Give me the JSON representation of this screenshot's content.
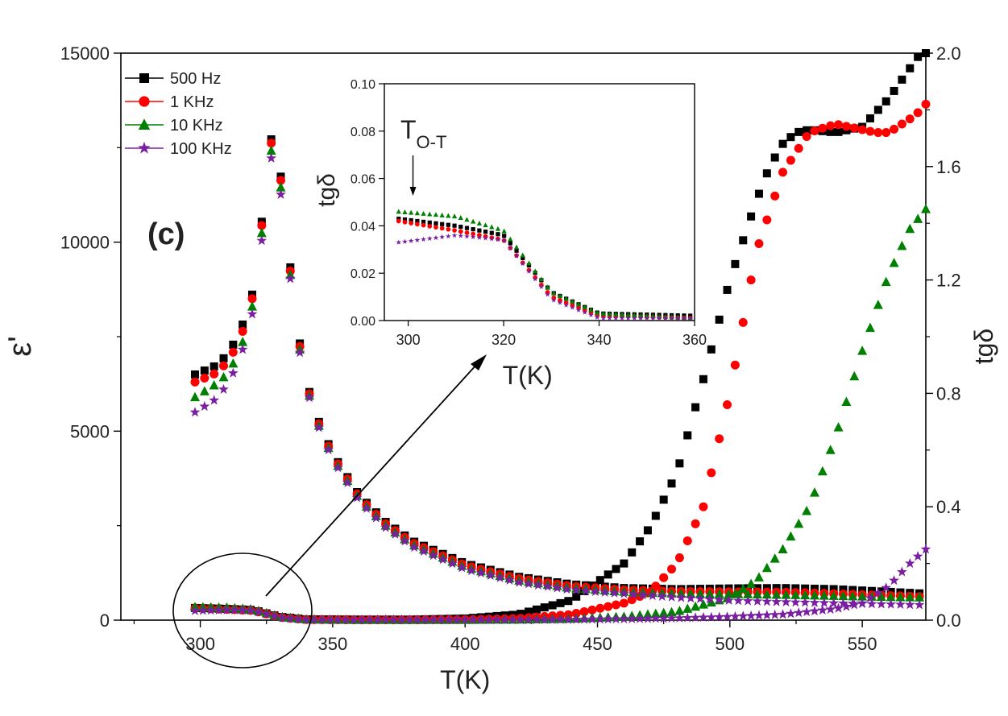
{
  "chart_data": {
    "type": "scatter",
    "panel_label": "(c)",
    "x_axis": {
      "label": "T(K)",
      "range": [
        270,
        574
      ],
      "ticks": [
        300,
        350,
        400,
        450,
        500,
        550
      ]
    },
    "y_axis_left": {
      "label": "ε'",
      "range": [
        0,
        15000
      ],
      "ticks": [
        0,
        5000,
        10000,
        15000
      ]
    },
    "y_axis_right": {
      "label": "tgδ",
      "range": [
        0,
        2.0
      ],
      "ticks": [
        "0.0",
        "0.4",
        "0.8",
        "1.2",
        "1.6",
        "2.0"
      ]
    },
    "legend": {
      "placement": "top-left"
    },
    "series": [
      {
        "name": "500 Hz",
        "color": "#000000",
        "marker": "square",
        "eps_points": [
          [
            298,
            6500
          ],
          [
            305,
            6700
          ],
          [
            310,
            7000
          ],
          [
            315,
            7600
          ],
          [
            320,
            8700
          ],
          [
            324,
            11000
          ],
          [
            326,
            12400
          ],
          [
            328,
            13200
          ],
          [
            330,
            12000
          ],
          [
            333,
            10000
          ],
          [
            336,
            8000
          ],
          [
            340,
            6300
          ],
          [
            345,
            5200
          ],
          [
            350,
            4400
          ],
          [
            360,
            3300
          ],
          [
            370,
            2600
          ],
          [
            380,
            2100
          ],
          [
            400,
            1500
          ],
          [
            420,
            1150
          ],
          [
            440,
            950
          ],
          [
            460,
            850
          ],
          [
            480,
            820
          ],
          [
            500,
            840
          ],
          [
            520,
            850
          ],
          [
            540,
            820
          ],
          [
            560,
            750
          ],
          [
            574,
            700
          ]
        ],
        "tan_points": [
          [
            298,
            0.043
          ],
          [
            310,
            0.04
          ],
          [
            320,
            0.036
          ],
          [
            330,
            0.012
          ],
          [
            340,
            0.003
          ],
          [
            360,
            0.002
          ],
          [
            380,
            0.002
          ],
          [
            400,
            0.006
          ],
          [
            420,
            0.02
          ],
          [
            440,
            0.07
          ],
          [
            460,
            0.2
          ],
          [
            470,
            0.33
          ],
          [
            480,
            0.52
          ],
          [
            490,
            0.85
          ],
          [
            500,
            1.2
          ],
          [
            510,
            1.48
          ],
          [
            515,
            1.6
          ],
          [
            520,
            1.68
          ],
          [
            525,
            1.72
          ],
          [
            530,
            1.73
          ],
          [
            540,
            1.72
          ],
          [
            550,
            1.74
          ],
          [
            560,
            1.84
          ],
          [
            566,
            1.92
          ],
          [
            572,
            2.0
          ]
        ]
      },
      {
        "name": "1 KHz",
        "color": "#ff0000",
        "marker": "circle",
        "eps_points": [
          [
            298,
            6300
          ],
          [
            305,
            6500
          ],
          [
            310,
            6800
          ],
          [
            315,
            7400
          ],
          [
            320,
            8600
          ],
          [
            324,
            10900
          ],
          [
            326,
            12300
          ],
          [
            328,
            13100
          ],
          [
            330,
            11900
          ],
          [
            333,
            9900
          ],
          [
            336,
            7900
          ],
          [
            340,
            6250
          ],
          [
            345,
            5150
          ],
          [
            350,
            4350
          ],
          [
            360,
            3250
          ],
          [
            370,
            2550
          ],
          [
            380,
            2050
          ],
          [
            400,
            1450
          ],
          [
            420,
            1100
          ],
          [
            440,
            900
          ],
          [
            460,
            800
          ],
          [
            480,
            760
          ],
          [
            500,
            750
          ],
          [
            520,
            740
          ],
          [
            540,
            700
          ],
          [
            560,
            650
          ],
          [
            574,
            620
          ]
        ],
        "tan_points": [
          [
            298,
            0.042
          ],
          [
            310,
            0.038
          ],
          [
            320,
            0.034
          ],
          [
            330,
            0.01
          ],
          [
            340,
            0.002
          ],
          [
            360,
            0.001
          ],
          [
            380,
            0.001
          ],
          [
            400,
            0.002
          ],
          [
            420,
            0.006
          ],
          [
            440,
            0.02
          ],
          [
            460,
            0.06
          ],
          [
            470,
            0.1
          ],
          [
            480,
            0.2
          ],
          [
            490,
            0.4
          ],
          [
            500,
            0.8
          ],
          [
            505,
            1.05
          ],
          [
            510,
            1.3
          ],
          [
            520,
            1.58
          ],
          [
            530,
            1.72
          ],
          [
            540,
            1.75
          ],
          [
            550,
            1.73
          ],
          [
            555,
            1.72
          ],
          [
            560,
            1.72
          ],
          [
            570,
            1.78
          ],
          [
            574,
            1.82
          ]
        ]
      },
      {
        "name": "10 KHz",
        "color": "#008000",
        "marker": "triangle",
        "eps_points": [
          [
            298,
            5900
          ],
          [
            305,
            6200
          ],
          [
            310,
            6500
          ],
          [
            315,
            7100
          ],
          [
            320,
            8400
          ],
          [
            324,
            10700
          ],
          [
            326,
            12100
          ],
          [
            328,
            12900
          ],
          [
            330,
            11700
          ],
          [
            333,
            9800
          ],
          [
            336,
            7800
          ],
          [
            340,
            6200
          ],
          [
            345,
            5100
          ],
          [
            350,
            4300
          ],
          [
            360,
            3200
          ],
          [
            370,
            2500
          ],
          [
            380,
            2000
          ],
          [
            400,
            1400
          ],
          [
            420,
            1050
          ],
          [
            440,
            850
          ],
          [
            460,
            750
          ],
          [
            480,
            700
          ],
          [
            500,
            690
          ],
          [
            520,
            670
          ],
          [
            540,
            640
          ],
          [
            560,
            610
          ],
          [
            574,
            600
          ]
        ],
        "tan_points": [
          [
            298,
            0.046
          ],
          [
            310,
            0.044
          ],
          [
            320,
            0.038
          ],
          [
            330,
            0.012
          ],
          [
            340,
            0.003
          ],
          [
            360,
            0.001
          ],
          [
            380,
            0.001
          ],
          [
            400,
            0.001
          ],
          [
            420,
            0.002
          ],
          [
            440,
            0.005
          ],
          [
            460,
            0.012
          ],
          [
            480,
            0.03
          ],
          [
            500,
            0.08
          ],
          [
            510,
            0.14
          ],
          [
            520,
            0.25
          ],
          [
            530,
            0.4
          ],
          [
            540,
            0.65
          ],
          [
            550,
            0.95
          ],
          [
            560,
            1.22
          ],
          [
            568,
            1.38
          ],
          [
            574,
            1.45
          ]
        ]
      },
      {
        "name": "100 KHz",
        "color": "#7b1fa2",
        "marker": "star",
        "eps_points": [
          [
            298,
            5500
          ],
          [
            305,
            5800
          ],
          [
            310,
            6200
          ],
          [
            315,
            6900
          ],
          [
            320,
            8200
          ],
          [
            324,
            10500
          ],
          [
            326,
            11900
          ],
          [
            328,
            12700
          ],
          [
            330,
            11500
          ],
          [
            333,
            9700
          ],
          [
            336,
            7700
          ],
          [
            340,
            6150
          ],
          [
            345,
            5050
          ],
          [
            350,
            4250
          ],
          [
            360,
            3150
          ],
          [
            370,
            2450
          ],
          [
            380,
            1950
          ],
          [
            400,
            1350
          ],
          [
            420,
            1000
          ],
          [
            440,
            800
          ],
          [
            460,
            700
          ],
          [
            480,
            600
          ],
          [
            500,
            520
          ],
          [
            520,
            480
          ],
          [
            540,
            450
          ],
          [
            560,
            420
          ],
          [
            574,
            400
          ]
        ],
        "tan_points": [
          [
            298,
            0.033
          ],
          [
            310,
            0.036
          ],
          [
            320,
            0.034
          ],
          [
            330,
            0.009
          ],
          [
            340,
            0.001
          ],
          [
            360,
            0.001
          ],
          [
            380,
            0.001
          ],
          [
            400,
            0.001
          ],
          [
            420,
            0.001
          ],
          [
            440,
            0.002
          ],
          [
            460,
            0.004
          ],
          [
            480,
            0.007
          ],
          [
            500,
            0.012
          ],
          [
            520,
            0.02
          ],
          [
            540,
            0.04
          ],
          [
            550,
            0.06
          ],
          [
            560,
            0.12
          ],
          [
            568,
            0.2
          ],
          [
            574,
            0.25
          ]
        ]
      }
    ],
    "inset": {
      "x_axis": {
        "label": "T(K)",
        "range": [
          295,
          360
        ],
        "ticks": [
          300,
          320,
          340,
          360
        ]
      },
      "y_axis": {
        "label": "tgδ",
        "range": [
          0,
          0.1
        ],
        "ticks": [
          "0.00",
          "0.02",
          "0.04",
          "0.06",
          "0.08",
          "0.10"
        ]
      },
      "annotation": {
        "text": "T",
        "subscript": "O-T",
        "x": 301
      }
    }
  }
}
